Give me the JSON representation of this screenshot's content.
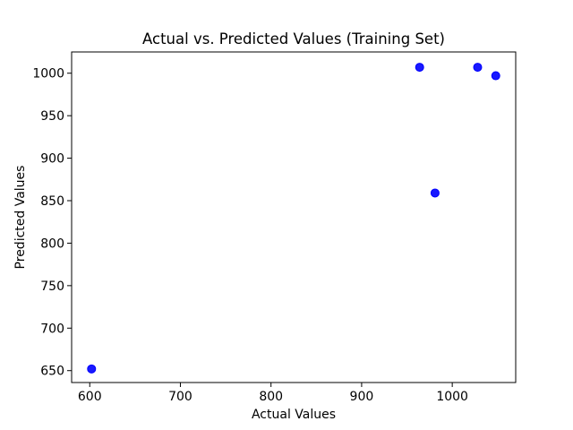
{
  "chart_data": {
    "type": "scatter",
    "title": "Actual vs. Predicted Values (Training Set)",
    "xlabel": "Actual Values",
    "ylabel": "Predicted Values",
    "xlim": [
      580,
      1070
    ],
    "ylim": [
      636,
      1025
    ],
    "xticks": [
      600,
      700,
      800,
      900,
      1000
    ],
    "yticks": [
      650,
      700,
      750,
      800,
      850,
      900,
      950,
      1000
    ],
    "grid": false,
    "points": [
      {
        "x": 602,
        "y": 652
      },
      {
        "x": 964,
        "y": 1007
      },
      {
        "x": 981,
        "y": 859
      },
      {
        "x": 1028,
        "y": 1007
      },
      {
        "x": 1048,
        "y": 997
      }
    ],
    "marker_color": "#0000ff"
  }
}
